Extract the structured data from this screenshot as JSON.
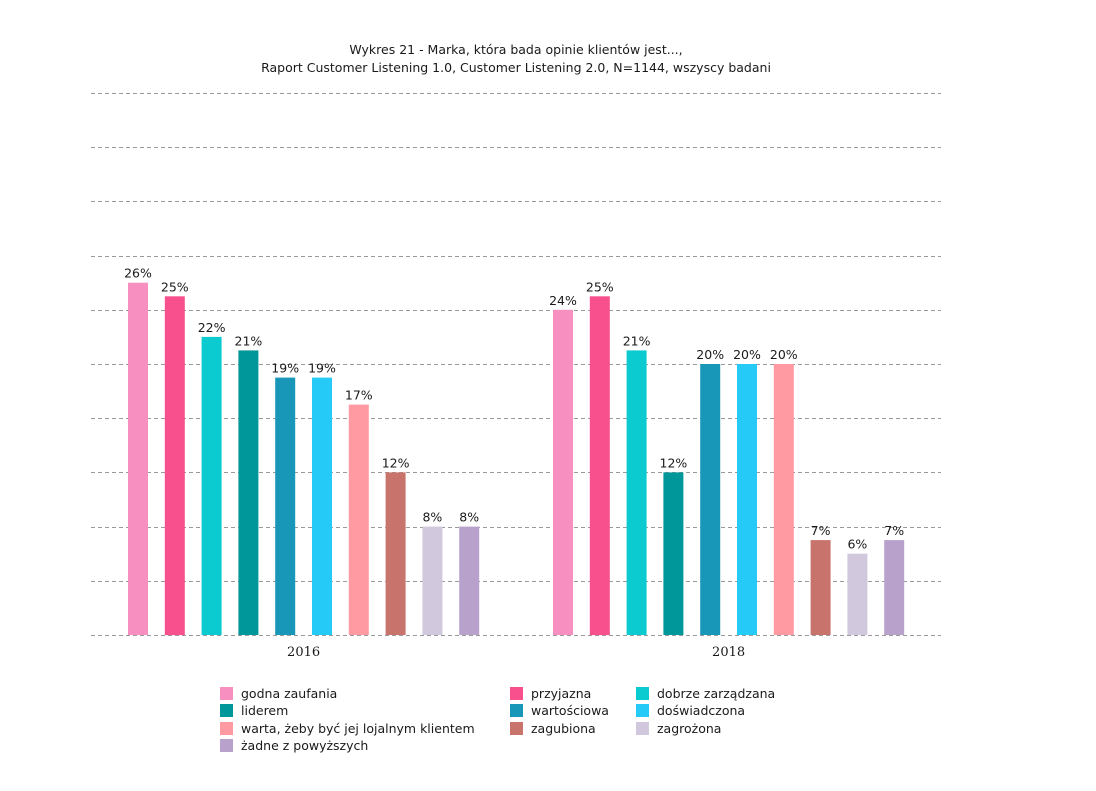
{
  "chart_data": {
    "type": "bar",
    "title": "Wykres 21 - Marka, która bada opinie klientów jest...,",
    "subtitle": "Raport Customer Listening 1.0, Customer Listening 2.0, N=1144, wszyscy badani",
    "xlabel": "",
    "ylabel": "",
    "ylim": [
      0,
      40
    ],
    "y_gridline_step": 4,
    "grid": true,
    "y_tick_labels_shown": false,
    "legend_position": "bottom",
    "value_format": "percent",
    "categories": [
      "2016",
      "2018"
    ],
    "series": [
      {
        "name": "godna zaufania",
        "color": "#F78FC0",
        "values": [
          26,
          24
        ]
      },
      {
        "name": "przyjazna",
        "color": "#F7508C",
        "values": [
          25,
          25
        ]
      },
      {
        "name": "dobrze zarządzana",
        "color": "#0BCBD0",
        "values": [
          22,
          21
        ]
      },
      {
        "name": "liderem",
        "color": "#00979A",
        "values": [
          21,
          12
        ]
      },
      {
        "name": "wartościowa",
        "color": "#1897B8",
        "values": [
          19,
          20
        ]
      },
      {
        "name": "doświadczona",
        "color": "#25CBF6",
        "values": [
          19,
          20
        ]
      },
      {
        "name": "warta, żeby być jej lojalnym klientem",
        "color": "#FF9AA2",
        "values": [
          17,
          20
        ]
      },
      {
        "name": "zagubiona",
        "color": "#C8736C",
        "values": [
          12,
          7
        ]
      },
      {
        "name": "zagrożona",
        "color": "#D2C8DE",
        "values": [
          8,
          6
        ]
      },
      {
        "name": "żadne z powyższych",
        "color": "#B8A2CC",
        "values": [
          8,
          7
        ]
      }
    ]
  }
}
